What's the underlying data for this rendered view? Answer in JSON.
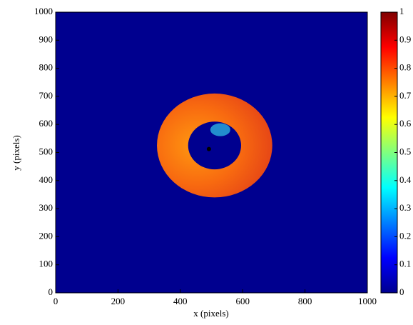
{
  "chart_data": {
    "type": "heatmap",
    "xlabel": "x (pixels)",
    "ylabel": "y (pixels)",
    "xlim": [
      0,
      1000
    ],
    "ylim": [
      0,
      1000
    ],
    "xticks": [
      0,
      200,
      400,
      600,
      800,
      1000
    ],
    "yticks": [
      0,
      100,
      200,
      300,
      400,
      500,
      600,
      700,
      800,
      900,
      1000
    ],
    "colormap": "jet",
    "colorbar": {
      "lim": [
        0,
        1
      ],
      "ticks": [
        0,
        0.1,
        0.2,
        0.3,
        0.4,
        0.5,
        0.6,
        0.7,
        0.8,
        0.9,
        1
      ]
    }
  }
}
